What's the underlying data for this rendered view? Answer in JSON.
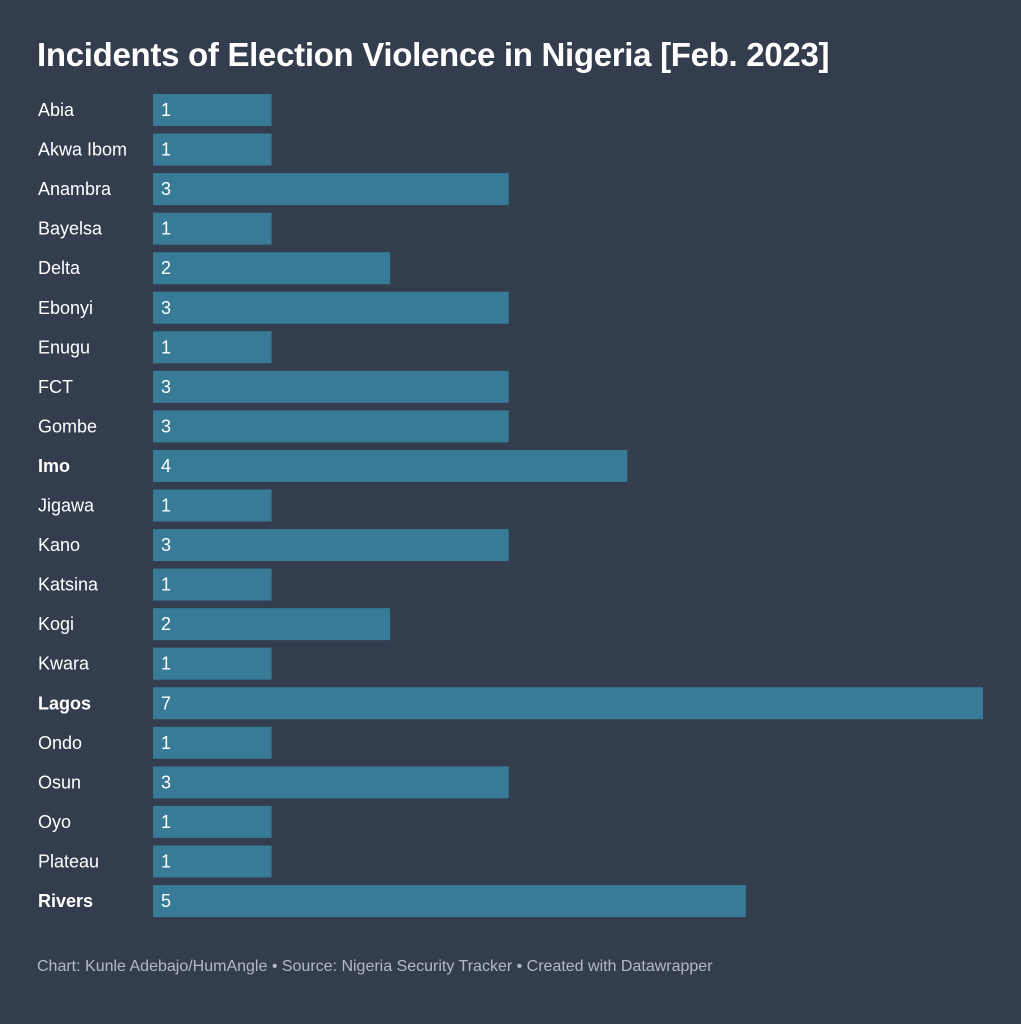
{
  "chart_data": {
    "type": "bar",
    "orientation": "horizontal",
    "title": "Incidents of Election Violence in Nigeria [Feb. 2023]",
    "categories": [
      "Abia",
      "Akwa Ibom",
      "Anambra",
      "Bayelsa",
      "Delta",
      "Ebonyi",
      "Enugu",
      "FCT",
      "Gombe",
      "Imo",
      "Jigawa",
      "Kano",
      "Katsina",
      "Kogi",
      "Kwara",
      "Lagos",
      "Ondo",
      "Osun",
      "Oyo",
      "Plateau",
      "Rivers"
    ],
    "values": [
      1,
      1,
      3,
      1,
      2,
      3,
      1,
      3,
      3,
      4,
      1,
      3,
      1,
      2,
      1,
      7,
      1,
      3,
      1,
      1,
      5
    ],
    "highlighted": [
      "Imo",
      "Lagos",
      "Rivers"
    ],
    "xlim": [
      0,
      7
    ],
    "bar_color": "#377b96",
    "background_color": "#333d4d",
    "grid": false,
    "legend": "none"
  },
  "footer": "Chart: Kunle Adebajo/HumAngle • Source: Nigeria Security Tracker • Created with Datawrapper"
}
